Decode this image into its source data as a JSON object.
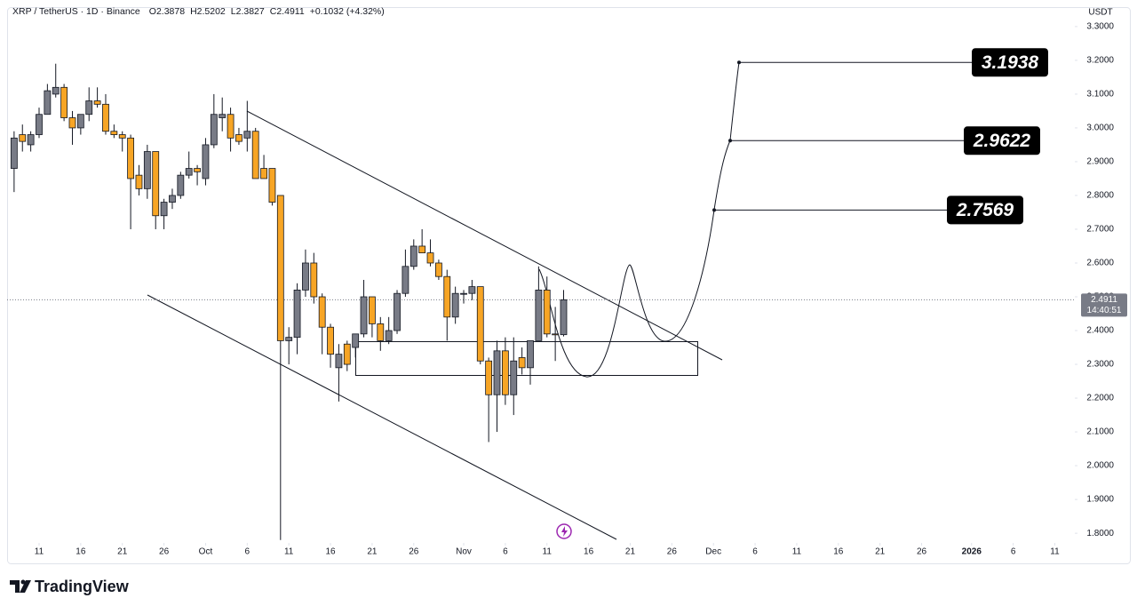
{
  "chart_data": {
    "type": "candlestick",
    "header": {
      "symbol": "XRP / TetherUS · 1D · Binance",
      "open_label": "O",
      "high_label": "H",
      "low_label": "L",
      "close_label": "C",
      "change": "+0.1032 (+4.32%)"
    },
    "currency": "USDT",
    "countdown": "14:40:51",
    "up_color": "#787b86",
    "down_color": "#f7a525",
    "grid": false,
    "open": [
      2.88,
      2.98,
      2.95,
      2.98,
      3.04,
      3.1,
      3.12,
      3.03,
      3.0,
      3.04,
      3.08,
      3.07,
      2.99,
      2.98,
      2.97,
      2.86,
      2.82,
      2.93,
      2.74,
      2.78,
      2.8,
      2.86,
      2.88,
      2.85,
      2.95,
      3.03,
      3.04,
      2.98,
      2.97,
      2.99,
      2.88,
      2.88,
      2.8,
      2.37,
      2.38,
      2.52,
      2.6,
      2.5,
      2.41,
      2.29,
      2.36,
      2.35,
      2.39,
      2.5,
      2.42,
      2.37,
      2.4,
      2.51,
      2.59,
      2.65,
      2.63,
      2.6,
      2.56,
      2.44,
      2.51,
      2.51,
      2.53,
      2.31,
      2.21,
      2.34,
      2.21,
      2.32,
      2.29,
      2.37,
      2.52,
      2.39,
      2.3878
    ],
    "high": [
      2.99,
      3.01,
      2.99,
      3.06,
      3.13,
      3.19,
      3.13,
      3.05,
      3.04,
      3.12,
      3.12,
      3.1,
      3.01,
      2.99,
      2.98,
      2.89,
      2.95,
      2.93,
      2.79,
      2.82,
      2.87,
      2.93,
      2.89,
      2.97,
      3.1,
      3.09,
      3.06,
      3.0,
      3.08,
      3.0,
      2.92,
      2.88,
      2.8,
      2.41,
      2.54,
      2.64,
      2.63,
      2.51,
      2.42,
      2.36,
      2.37,
      2.39,
      2.55,
      2.5,
      2.44,
      2.44,
      2.52,
      2.64,
      2.67,
      2.7,
      2.67,
      2.61,
      2.58,
      2.53,
      2.52,
      2.55,
      2.53,
      2.32,
      2.37,
      2.38,
      2.38,
      2.35,
      2.37,
      2.59,
      2.56,
      2.47,
      2.5202
    ],
    "low": [
      2.81,
      2.93,
      2.93,
      2.97,
      3.04,
      3.09,
      3.02,
      2.95,
      2.98,
      3.02,
      3.06,
      2.98,
      2.97,
      2.93,
      2.7,
      2.8,
      2.79,
      2.7,
      2.7,
      2.76,
      2.79,
      2.85,
      2.83,
      2.83,
      2.94,
      2.99,
      2.93,
      2.95,
      2.93,
      2.85,
      2.85,
      2.77,
      1.78,
      2.3,
      2.33,
      2.5,
      2.48,
      2.33,
      2.29,
      2.19,
      2.28,
      2.32,
      2.38,
      2.38,
      2.34,
      2.36,
      2.39,
      2.5,
      2.58,
      2.63,
      2.59,
      2.55,
      2.37,
      2.42,
      2.48,
      2.49,
      2.3,
      2.07,
      2.1,
      2.18,
      2.15,
      2.27,
      2.24,
      2.37,
      2.38,
      2.31,
      2.3827
    ],
    "close": [
      2.97,
      2.96,
      2.98,
      3.04,
      3.11,
      3.12,
      3.03,
      3.0,
      3.04,
      3.08,
      3.07,
      2.99,
      2.98,
      2.97,
      2.85,
      2.82,
      2.93,
      2.74,
      2.78,
      2.8,
      2.86,
      2.88,
      2.87,
      2.95,
      3.04,
      3.04,
      2.97,
      2.96,
      2.99,
      2.85,
      2.85,
      2.78,
      2.37,
      2.38,
      2.52,
      2.6,
      2.5,
      2.41,
      2.33,
      2.33,
      2.3,
      2.39,
      2.5,
      2.42,
      2.37,
      2.4,
      2.51,
      2.59,
      2.65,
      2.63,
      2.6,
      2.56,
      2.44,
      2.51,
      2.51,
      2.53,
      2.31,
      2.21,
      2.34,
      2.21,
      2.31,
      2.29,
      2.37,
      2.52,
      2.39,
      2.3878,
      2.4911
    ],
    "targets": [
      3.1938,
      2.9622,
      2.7569
    ],
    "xlim": [
      -0.84,
      127.4
    ],
    "xticks": [
      {
        "value": 3,
        "label": "11"
      },
      {
        "value": 8,
        "label": "16"
      },
      {
        "value": 13,
        "label": "21"
      },
      {
        "value": 18,
        "label": "26"
      },
      {
        "value": 23,
        "label": "Oct"
      },
      {
        "value": 28,
        "label": "6"
      },
      {
        "value": 33,
        "label": "11"
      },
      {
        "value": 38,
        "label": "16"
      },
      {
        "value": 43,
        "label": "21"
      },
      {
        "value": 48,
        "label": "26"
      },
      {
        "value": 54,
        "label": "Nov"
      },
      {
        "value": 59,
        "label": "6"
      },
      {
        "value": 64,
        "label": "11"
      },
      {
        "value": 69,
        "label": "16"
      },
      {
        "value": 74,
        "label": "21"
      },
      {
        "value": 79,
        "label": "26"
      },
      {
        "value": 84,
        "label": "Dec"
      },
      {
        "value": 89,
        "label": "6"
      },
      {
        "value": 94,
        "label": "11"
      },
      {
        "value": 99,
        "label": "16"
      },
      {
        "value": 104,
        "label": "21"
      },
      {
        "value": 109,
        "label": "26"
      },
      {
        "value": 115,
        "label": "2026",
        "bold": true
      },
      {
        "value": 120,
        "label": "6"
      },
      {
        "value": 125,
        "label": "11"
      }
    ],
    "ylim": [
      1.774,
      3.326
    ],
    "yticks": [
      {
        "value": 3.3,
        "label": "3.3000"
      },
      {
        "value": 3.2,
        "label": "3.2000"
      },
      {
        "value": 3.1,
        "label": "3.1000"
      },
      {
        "value": 3.0,
        "label": "3.0000"
      },
      {
        "value": 2.9,
        "label": "2.9000"
      },
      {
        "value": 2.8,
        "label": "2.8000"
      },
      {
        "value": 2.7,
        "label": "2.7000"
      },
      {
        "value": 2.6,
        "label": "2.6000"
      },
      {
        "value": 2.5,
        "label": "2.5000"
      },
      {
        "value": 2.4,
        "label": "2.4000"
      },
      {
        "value": 2.3,
        "label": "2.3000"
      },
      {
        "value": 2.2,
        "label": "2.2000"
      },
      {
        "value": 2.1,
        "label": "2.1000"
      },
      {
        "value": 2.0,
        "label": "2.0000"
      },
      {
        "value": 1.9,
        "label": "1.9000"
      },
      {
        "value": 1.8,
        "label": "1.8000"
      }
    ],
    "brand": "TradingView"
  }
}
